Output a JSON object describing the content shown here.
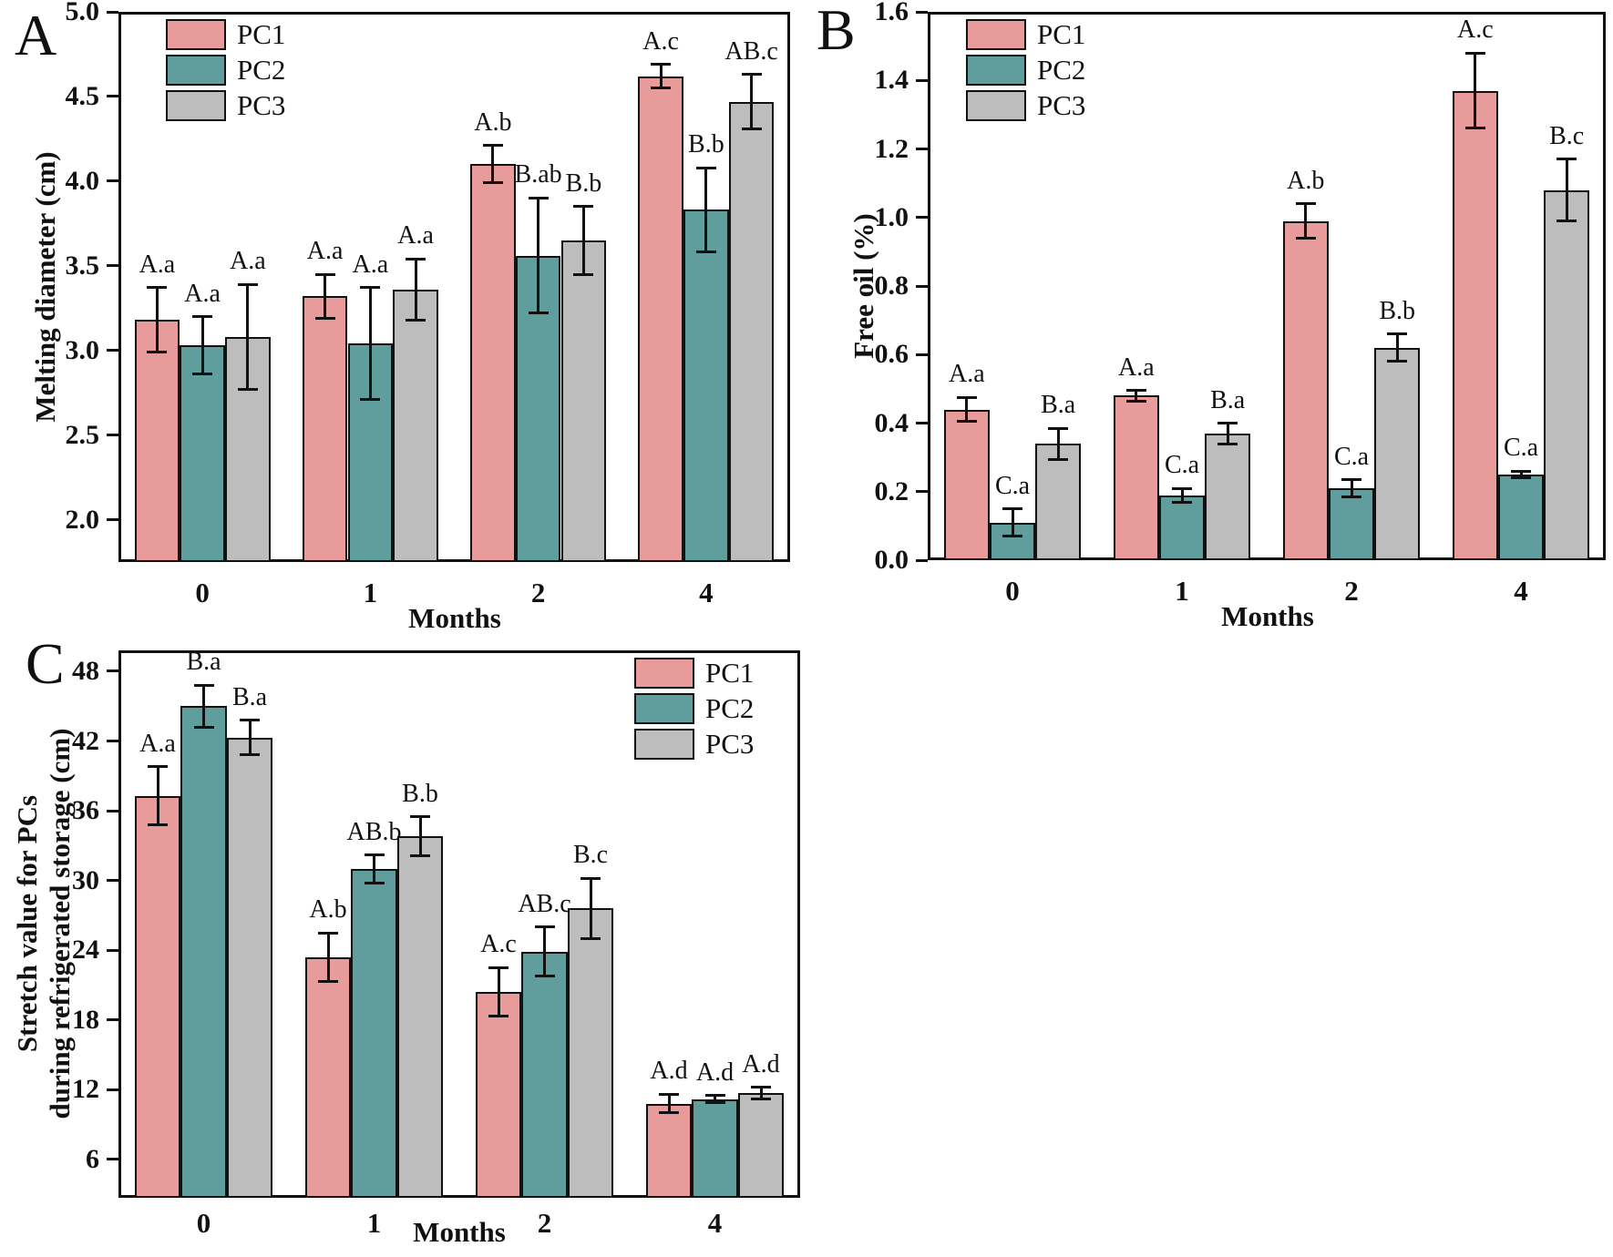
{
  "figure": {
    "background": "#ffffff",
    "series_colors": {
      "PC1": "#e89b9b",
      "PC2": "#5f9e9d",
      "PC3": "#bdbdbd"
    }
  },
  "chart_data": [
    {
      "type": "bar",
      "panel_label": "A",
      "title": "",
      "ylabel": "Melting diameter (cm)",
      "xlabel": "Months",
      "categories": [
        "0",
        "1",
        "2",
        "4"
      ],
      "ylim": [
        1.75,
        5.0
      ],
      "grid": false,
      "yticks": [
        {
          "v": 2.0,
          "label": "2.0"
        },
        {
          "v": 2.5,
          "label": "2.5"
        },
        {
          "v": 3.0,
          "label": "3.0"
        },
        {
          "v": 3.5,
          "label": "3.5"
        },
        {
          "v": 4.0,
          "label": "4.0"
        },
        {
          "v": 4.5,
          "label": "4.5"
        },
        {
          "v": 5.0,
          "label": "5.0"
        }
      ],
      "legend": {
        "labels": [
          "PC1",
          "PC2",
          "PC3"
        ],
        "position": "top-left"
      },
      "series": [
        {
          "name": "PC1",
          "color": "#e89b9b",
          "values": [
            3.18,
            3.32,
            4.1,
            4.62
          ],
          "errors": [
            0.19,
            0.13,
            0.11,
            0.07
          ],
          "sig_labels": [
            "A.a",
            "A.a",
            "A.b",
            "A.c"
          ]
        },
        {
          "name": "PC2",
          "color": "#5f9e9d",
          "values": [
            3.03,
            3.04,
            3.56,
            3.83
          ],
          "errors": [
            0.17,
            0.33,
            0.34,
            0.25
          ],
          "sig_labels": [
            "A.a",
            "A.a",
            "B.ab",
            "B.b"
          ]
        },
        {
          "name": "PC3",
          "color": "#bdbdbd",
          "values": [
            3.08,
            3.36,
            3.65,
            4.47
          ],
          "errors": [
            0.31,
            0.18,
            0.2,
            0.16
          ],
          "sig_labels": [
            "A.a",
            "A.a",
            "B.b",
            "AB.c"
          ]
        }
      ]
    },
    {
      "type": "bar",
      "panel_label": "B",
      "title": "",
      "ylabel": "Free oil (%)",
      "xlabel": "Months",
      "categories": [
        "0",
        "1",
        "2",
        "4"
      ],
      "ylim": [
        0.0,
        1.6
      ],
      "grid": false,
      "yticks": [
        {
          "v": 0.0,
          "label": "0.0"
        },
        {
          "v": 0.2,
          "label": "0.2"
        },
        {
          "v": 0.4,
          "label": "0.4"
        },
        {
          "v": 0.6,
          "label": "0.6"
        },
        {
          "v": 0.8,
          "label": "0.8"
        },
        {
          "v": 1.0,
          "label": "1.0"
        },
        {
          "v": 1.2,
          "label": "1.2"
        },
        {
          "v": 1.4,
          "label": "1.4"
        },
        {
          "v": 1.6,
          "label": "1.6"
        }
      ],
      "legend": {
        "labels": [
          "PC1",
          "PC2",
          "PC3"
        ],
        "position": "top-left"
      },
      "series": [
        {
          "name": "PC1",
          "color": "#e89b9b",
          "values": [
            0.44,
            0.48,
            0.99,
            1.37
          ],
          "errors": [
            0.035,
            0.015,
            0.05,
            0.11
          ],
          "sig_labels": [
            "A.a",
            "A.a",
            "A.b",
            "A.c"
          ]
        },
        {
          "name": "PC2",
          "color": "#5f9e9d",
          "values": [
            0.11,
            0.19,
            0.21,
            0.25
          ],
          "errors": [
            0.04,
            0.02,
            0.025,
            0.01
          ],
          "sig_labels": [
            "C.a",
            "C.a",
            "C.a",
            "C.a"
          ]
        },
        {
          "name": "PC3",
          "color": "#bdbdbd",
          "values": [
            0.34,
            0.37,
            0.62,
            1.08
          ],
          "errors": [
            0.045,
            0.03,
            0.04,
            0.09
          ],
          "sig_labels": [
            "B.a",
            "B.a",
            "B.b",
            "B.c"
          ]
        }
      ]
    },
    {
      "type": "bar",
      "panel_label": "C",
      "title": "",
      "ylabel": "Stretch value for PCs\nduring refrigerated storage (cm)",
      "xlabel": "Months",
      "categories": [
        "0",
        "1",
        "2",
        "4"
      ],
      "ylim": [
        2.7,
        49.8
      ],
      "grid": false,
      "yticks": [
        {
          "v": 6,
          "label": "6"
        },
        {
          "v": 12,
          "label": "12"
        },
        {
          "v": 18,
          "label": "18"
        },
        {
          "v": 24,
          "label": "24"
        },
        {
          "v": 30,
          "label": "30"
        },
        {
          "v": 36,
          "label": "36"
        },
        {
          "v": 42,
          "label": "42"
        },
        {
          "v": 48,
          "label": "48"
        }
      ],
      "legend": {
        "labels": [
          "PC1",
          "PC2",
          "PC3"
        ],
        "position": "top-right"
      },
      "series": [
        {
          "name": "PC1",
          "color": "#e89b9b",
          "values": [
            37.3,
            23.4,
            20.4,
            10.8
          ],
          "errors": [
            2.5,
            2.1,
            2.1,
            0.8
          ],
          "sig_labels": [
            "A.a",
            "A.b",
            "A.c",
            "A.d"
          ]
        },
        {
          "name": "PC2",
          "color": "#5f9e9d",
          "values": [
            45.0,
            31.0,
            23.9,
            11.2
          ],
          "errors": [
            1.8,
            1.2,
            2.1,
            0.3
          ],
          "sig_labels": [
            "B.a",
            "AB.b",
            "AB.c",
            "A.d"
          ]
        },
        {
          "name": "PC3",
          "color": "#bdbdbd",
          "values": [
            42.3,
            33.8,
            27.6,
            11.7
          ],
          "errors": [
            1.5,
            1.7,
            2.6,
            0.5
          ],
          "sig_labels": [
            "B.a",
            "B.b",
            "B.c",
            "A.d"
          ]
        }
      ]
    }
  ]
}
